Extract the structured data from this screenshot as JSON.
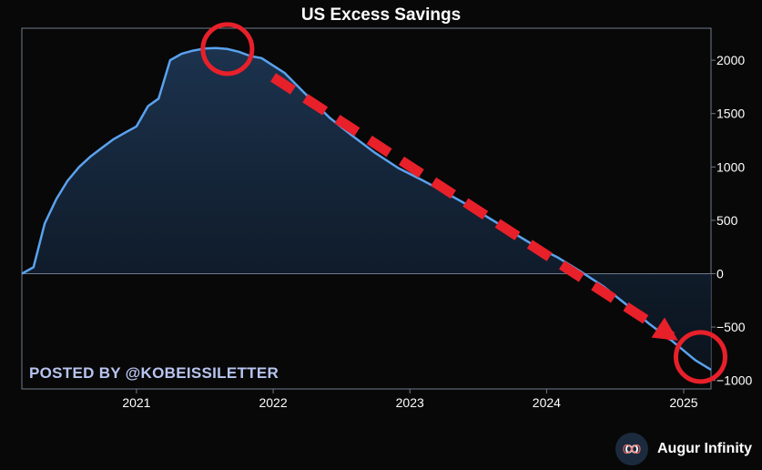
{
  "header": {
    "title": "US Excess Savings"
  },
  "watermark": "POSTED BY @KOBEISSILETTER",
  "brand": {
    "name": "Augur Infinity",
    "logo_icon": "infinity-icon"
  },
  "colors": {
    "background": "#080808",
    "line": "#5aa2ee",
    "fill_top": "#1d3552",
    "annotation": "#e8202a",
    "axis": "#6f7b8c"
  },
  "chart_data": {
    "type": "area",
    "title": "US Excess Savings",
    "xlabel": "",
    "ylabel": "",
    "xlim": [
      "2020-03-01",
      "2025-03-15"
    ],
    "ylim": [
      -1080,
      2300
    ],
    "y_ticks": [
      2000,
      1500,
      1000,
      500,
      0,
      -500,
      -1000
    ],
    "y_tick_labels": [
      "2000",
      "1500",
      "1000",
      "500",
      "0",
      "−500",
      "−1000"
    ],
    "x_ticks": [
      "2021-01-01",
      "2022-01-01",
      "2023-01-01",
      "2024-01-01",
      "2025-01-01"
    ],
    "x_tick_labels": [
      "2021",
      "2022",
      "2023",
      "2024",
      "2025"
    ],
    "y_axis_position": "right",
    "grid": false,
    "legend": "none",
    "series": [
      {
        "x": [
          "2020-03-01",
          "2020-04-01",
          "2020-05-01",
          "2020-06-01",
          "2020-07-01",
          "2020-08-01",
          "2020-09-01",
          "2020-10-01",
          "2020-11-01",
          "2020-12-01",
          "2021-01-01",
          "2021-02-01",
          "2021-03-01",
          "2021-04-01",
          "2021-05-01",
          "2021-06-01",
          "2021-07-01",
          "2021-08-01",
          "2021-09-01",
          "2021-10-01",
          "2021-11-01",
          "2021-12-01",
          "2022-02-01",
          "2022-04-01",
          "2022-06-01",
          "2022-08-01",
          "2022-10-01",
          "2022-12-01",
          "2023-02-01",
          "2023-04-01",
          "2023-06-01",
          "2023-08-01",
          "2023-10-01",
          "2023-12-01",
          "2024-02-01",
          "2024-04-01",
          "2024-06-01",
          "2024-08-01",
          "2024-10-01",
          "2024-12-01",
          "2025-02-01",
          "2025-03-15"
        ],
        "y": [
          0,
          60,
          470,
          700,
          870,
          1000,
          1100,
          1180,
          1260,
          1320,
          1380,
          1570,
          1640,
          2000,
          2060,
          2090,
          2110,
          2115,
          2105,
          2080,
          2040,
          2020,
          1880,
          1670,
          1460,
          1290,
          1130,
          990,
          880,
          770,
          650,
          520,
          390,
          260,
          150,
          20,
          -120,
          -290,
          -470,
          -630,
          -810,
          -900
        ]
      }
    ],
    "annotations": [
      {
        "type": "circle",
        "at": [
          "2021-09-01",
          2105
        ]
      },
      {
        "type": "circle",
        "at": [
          "2025-02-15",
          -780
        ]
      },
      {
        "type": "dashed-arrow",
        "from": [
          "2022-01-01",
          1840
        ],
        "to": [
          "2024-12-01",
          -590
        ]
      }
    ]
  }
}
